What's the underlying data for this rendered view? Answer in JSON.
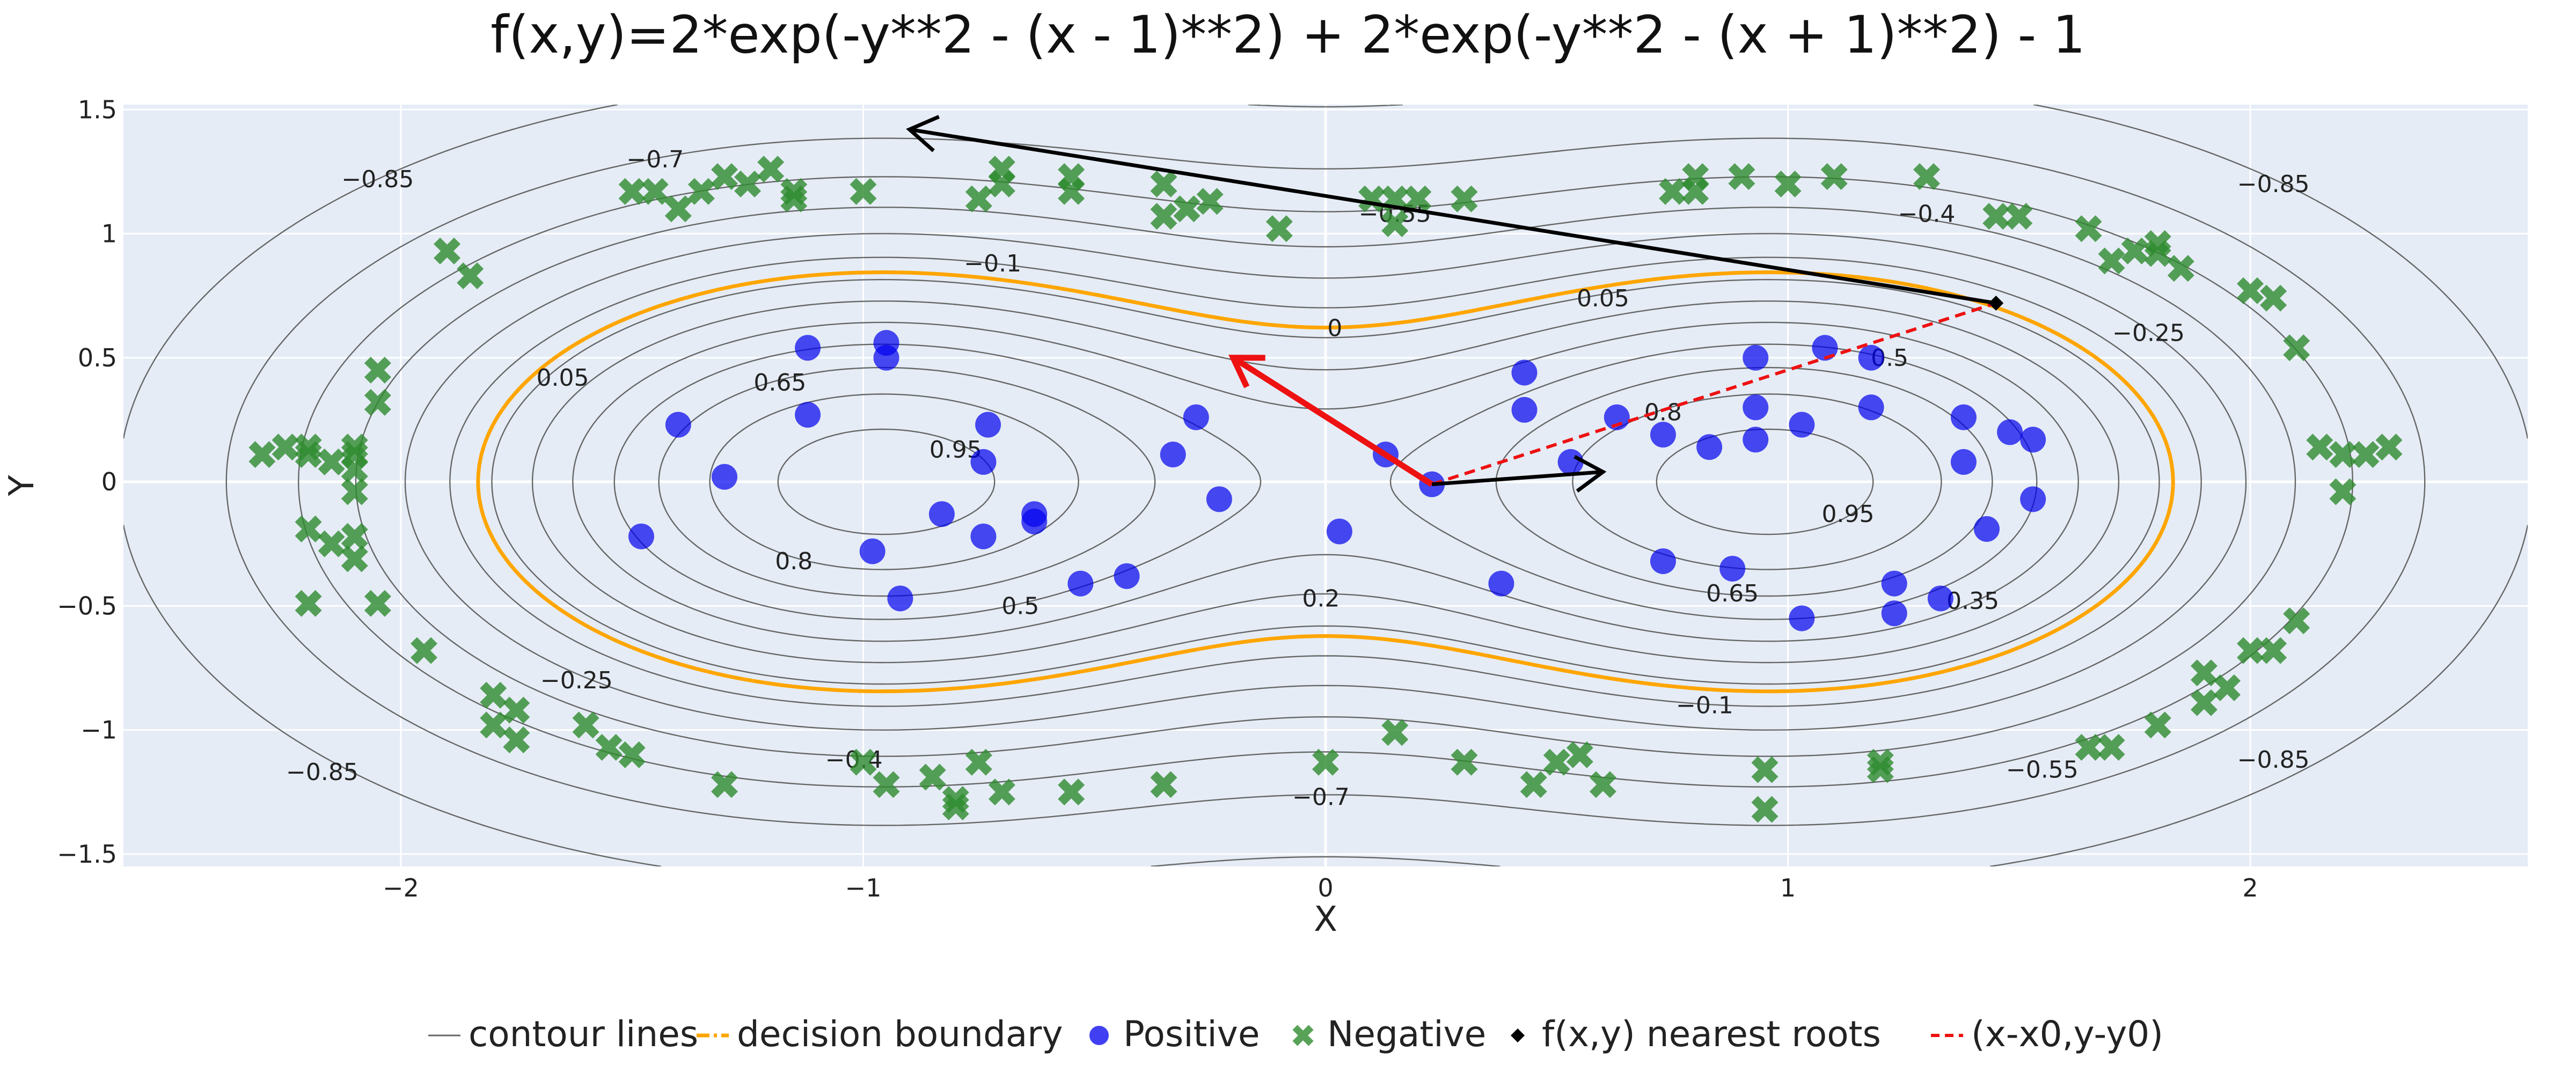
{
  "chart_data": {
    "type": "scatter",
    "title": "f(x,y)=2*exp(-y**2 - (x - 1)**2) + 2*exp(-y**2 - (x + 1)**2) - 1",
    "xlabel": "X",
    "ylabel": "Y",
    "xlim": [
      -2.6,
      2.6
    ],
    "ylim": [
      -1.55,
      1.52
    ],
    "x_ticks": [
      -2,
      -1,
      0,
      1,
      2
    ],
    "y_ticks": [
      -1.5,
      -1,
      -0.5,
      0,
      0.5,
      1,
      1.5
    ],
    "x_tick_labels": [
      "−2",
      "−1",
      "0",
      "1",
      "2"
    ],
    "y_tick_labels": [
      "−1.5",
      "−1",
      "−0.5",
      "0",
      "0.5",
      "1",
      "1.5"
    ],
    "grid": true,
    "legend_position": "bottom",
    "colors": {
      "plot_bg": "#E5ECF6",
      "contour": "#666666",
      "boundary": "#FFA500",
      "positive": "#0000EE",
      "negative": "#2E8B2E",
      "gradient_arrow": "#EE1111",
      "roots_arrow": "#000000",
      "offset_line": "#EE1111"
    },
    "contour_levels": [
      -0.85,
      -0.7,
      -0.55,
      -0.4,
      -0.25,
      -0.1,
      0.05,
      0.2,
      0.35,
      0.5,
      0.65,
      0.8,
      0.95
    ],
    "contour_labels": [
      {
        "text": "−0.85",
        "x": -2.05,
        "y": 1.22
      },
      {
        "text": "−0.7",
        "x": -1.45,
        "y": 1.3
      },
      {
        "text": "−0.55",
        "x": 0.15,
        "y": 1.08
      },
      {
        "text": "−0.4",
        "x": 1.3,
        "y": 1.08
      },
      {
        "text": "−0.85",
        "x": 2.05,
        "y": 1.2
      },
      {
        "text": "−0.1",
        "x": -0.72,
        "y": 0.88
      },
      {
        "text": "0.05",
        "x": 0.6,
        "y": 0.74
      },
      {
        "text": "0",
        "x": 0.02,
        "y": 0.62
      },
      {
        "text": "−0.25",
        "x": 1.78,
        "y": 0.6
      },
      {
        "text": "0.05",
        "x": -1.65,
        "y": 0.42
      },
      {
        "text": "0.65",
        "x": -1.18,
        "y": 0.4
      },
      {
        "text": "0.5",
        "x": 1.22,
        "y": 0.5
      },
      {
        "text": "0.8",
        "x": 0.73,
        "y": 0.28
      },
      {
        "text": "0.95",
        "x": -0.8,
        "y": 0.13
      },
      {
        "text": "0.95",
        "x": 1.13,
        "y": -0.13
      },
      {
        "text": "0.8",
        "x": -1.15,
        "y": -0.32
      },
      {
        "text": "0.65",
        "x": 0.88,
        "y": -0.45
      },
      {
        "text": "0.35",
        "x": 1.4,
        "y": -0.48
      },
      {
        "text": "0.5",
        "x": -0.66,
        "y": -0.5
      },
      {
        "text": "0.2",
        "x": -0.01,
        "y": -0.47
      },
      {
        "text": "−0.25",
        "x": -1.62,
        "y": -0.8
      },
      {
        "text": "−0.1",
        "x": 0.82,
        "y": -0.9
      },
      {
        "text": "−0.4",
        "x": -1.02,
        "y": -1.12
      },
      {
        "text": "−0.55",
        "x": 1.55,
        "y": -1.16
      },
      {
        "text": "−0.7",
        "x": -0.01,
        "y": -1.27
      },
      {
        "text": "−0.85",
        "x": -2.17,
        "y": -1.17
      },
      {
        "text": "−0.85",
        "x": 2.05,
        "y": -1.12
      }
    ],
    "series": [
      {
        "name": "Positive",
        "marker": "circle",
        "points": [
          [
            -1.3,
            0.02
          ],
          [
            -1.48,
            -0.22
          ],
          [
            -1.4,
            0.23
          ],
          [
            -1.12,
            0.27
          ],
          [
            -1.12,
            0.54
          ],
          [
            -0.95,
            0.56
          ],
          [
            -0.95,
            0.5
          ],
          [
            -0.73,
            0.23
          ],
          [
            -0.74,
            0.08
          ],
          [
            -0.74,
            -0.22
          ],
          [
            -0.63,
            -0.13
          ],
          [
            -0.63,
            -0.16
          ],
          [
            -0.83,
            -0.13
          ],
          [
            -0.98,
            -0.28
          ],
          [
            -0.92,
            -0.47
          ],
          [
            -0.53,
            -0.41
          ],
          [
            -0.43,
            -0.38
          ],
          [
            -0.33,
            0.11
          ],
          [
            -0.28,
            0.26
          ],
          [
            -0.23,
            -0.07
          ],
          [
            0.13,
            0.11
          ],
          [
            0.23,
            -0.01
          ],
          [
            0.03,
            -0.2
          ],
          [
            0.38,
            -0.41
          ],
          [
            0.43,
            0.29
          ],
          [
            0.43,
            0.44
          ],
          [
            0.53,
            0.08
          ],
          [
            0.63,
            0.26
          ],
          [
            0.73,
            0.19
          ],
          [
            0.83,
            0.14
          ],
          [
            0.93,
            0.17
          ],
          [
            0.93,
            0.3
          ],
          [
            0.93,
            0.5
          ],
          [
            1.03,
            0.23
          ],
          [
            1.08,
            0.54
          ],
          [
            1.18,
            0.3
          ],
          [
            1.18,
            0.5
          ],
          [
            1.38,
            0.26
          ],
          [
            1.48,
            0.2
          ],
          [
            1.53,
            0.17
          ],
          [
            1.53,
            -0.07
          ],
          [
            1.38,
            0.08
          ],
          [
            1.43,
            -0.19
          ],
          [
            0.73,
            -0.32
          ],
          [
            0.88,
            -0.35
          ],
          [
            1.03,
            -0.55
          ],
          [
            1.23,
            -0.41
          ],
          [
            1.23,
            -0.53
          ],
          [
            1.33,
            -0.47
          ]
        ]
      },
      {
        "name": "Negative",
        "marker": "x",
        "points": [
          [
            -2.3,
            0.11
          ],
          [
            -2.25,
            0.14
          ],
          [
            -2.2,
            0.11
          ],
          [
            -2.15,
            0.08
          ],
          [
            -2.1,
            0.11
          ],
          [
            -2.2,
            0.14
          ],
          [
            -2.1,
            0.14
          ],
          [
            -2.1,
            0.05
          ],
          [
            -2.1,
            -0.04
          ],
          [
            -2.2,
            -0.19
          ],
          [
            -2.15,
            -0.25
          ],
          [
            -2.1,
            -0.31
          ],
          [
            -2.1,
            -0.22
          ],
          [
            -2.05,
            0.32
          ],
          [
            -2.05,
            0.45
          ],
          [
            -2.2,
            -0.49
          ],
          [
            -2.05,
            -0.49
          ],
          [
            -1.95,
            -0.68
          ],
          [
            -1.9,
            0.93
          ],
          [
            -1.85,
            0.83
          ],
          [
            -1.8,
            -0.86
          ],
          [
            -1.8,
            -0.98
          ],
          [
            -1.75,
            -0.92
          ],
          [
            -1.75,
            -1.04
          ],
          [
            -1.6,
            -0.98
          ],
          [
            -1.55,
            -1.07
          ],
          [
            -1.5,
            -1.1
          ],
          [
            -1.5,
            1.17
          ],
          [
            -1.45,
            1.17
          ],
          [
            -1.4,
            1.1
          ],
          [
            -1.35,
            1.17
          ],
          [
            -1.3,
            1.23
          ],
          [
            -1.25,
            1.2
          ],
          [
            -1.2,
            1.26
          ],
          [
            -1.15,
            1.14
          ],
          [
            -1.15,
            1.17
          ],
          [
            -1.0,
            1.17
          ],
          [
            -1.3,
            -1.22
          ],
          [
            -1.0,
            -1.13
          ],
          [
            -0.85,
            -1.19
          ],
          [
            -0.95,
            -1.22
          ],
          [
            -0.8,
            -1.31
          ],
          [
            -0.75,
            -1.13
          ],
          [
            -0.8,
            -1.28
          ],
          [
            -0.7,
            -1.25
          ],
          [
            -0.7,
            1.26
          ],
          [
            -0.75,
            1.14
          ],
          [
            -0.7,
            1.2
          ],
          [
            -0.55,
            1.23
          ],
          [
            -0.55,
            1.17
          ],
          [
            -0.55,
            -1.25
          ],
          [
            -0.35,
            -1.22
          ],
          [
            -0.35,
            1.2
          ],
          [
            -0.3,
            1.1
          ],
          [
            -0.35,
            1.07
          ],
          [
            -0.25,
            1.13
          ],
          [
            -0.1,
            1.02
          ],
          [
            0.1,
            1.14
          ],
          [
            0.15,
            1.14
          ],
          [
            0.15,
            1.04
          ],
          [
            0.2,
            1.14
          ],
          [
            0.3,
            1.14
          ],
          [
            0.0,
            -1.13
          ],
          [
            0.15,
            -1.01
          ],
          [
            0.3,
            -1.13
          ],
          [
            0.45,
            -1.22
          ],
          [
            0.5,
            -1.13
          ],
          [
            0.55,
            -1.1
          ],
          [
            0.6,
            -1.22
          ],
          [
            0.75,
            1.17
          ],
          [
            0.8,
            1.23
          ],
          [
            0.8,
            1.17
          ],
          [
            0.9,
            1.23
          ],
          [
            1.0,
            1.2
          ],
          [
            1.1,
            1.23
          ],
          [
            1.3,
            1.23
          ],
          [
            0.95,
            -1.16
          ],
          [
            0.95,
            -1.32
          ],
          [
            1.2,
            -1.13
          ],
          [
            1.2,
            -1.16
          ],
          [
            1.45,
            1.07
          ],
          [
            1.5,
            1.07
          ],
          [
            1.65,
            1.02
          ],
          [
            1.7,
            0.89
          ],
          [
            1.75,
            0.93
          ],
          [
            1.8,
            0.96
          ],
          [
            1.8,
            0.92
          ],
          [
            1.85,
            0.86
          ],
          [
            2.0,
            0.77
          ],
          [
            2.05,
            0.74
          ],
          [
            2.1,
            0.54
          ],
          [
            2.15,
            0.14
          ],
          [
            2.2,
            0.11
          ],
          [
            2.25,
            0.11
          ],
          [
            2.2,
            -0.04
          ],
          [
            2.3,
            0.14
          ],
          [
            1.65,
            -1.07
          ],
          [
            1.7,
            -1.07
          ],
          [
            1.8,
            -0.98
          ],
          [
            1.9,
            -0.89
          ],
          [
            1.9,
            -0.77
          ],
          [
            1.95,
            -0.83
          ],
          [
            2.0,
            -0.68
          ],
          [
            2.05,
            -0.68
          ],
          [
            2.1,
            -0.56
          ]
        ]
      },
      {
        "name": "f(x,y) nearest roots",
        "marker": "diamond",
        "points": [
          [
            1.45,
            0.72
          ]
        ]
      },
      {
        "name": "(x-x0,y-y0)",
        "marker": "dash",
        "points": [
          [
            0.23,
            -0.01
          ],
          [
            1.45,
            0.72
          ]
        ]
      }
    ],
    "boundary_name": "decision boundary",
    "contour_name": "contour lines",
    "arrows": [
      {
        "name": "gradient",
        "color": "red",
        "from": [
          0.23,
          -0.01
        ],
        "to": [
          -0.2,
          0.5
        ]
      },
      {
        "name": "step",
        "color": "black",
        "from": [
          0.23,
          -0.01
        ],
        "to": [
          0.6,
          0.04
        ]
      },
      {
        "name": "root-direction",
        "color": "black",
        "from": [
          1.45,
          0.72
        ],
        "to": [
          -0.9,
          1.42
        ]
      }
    ]
  }
}
